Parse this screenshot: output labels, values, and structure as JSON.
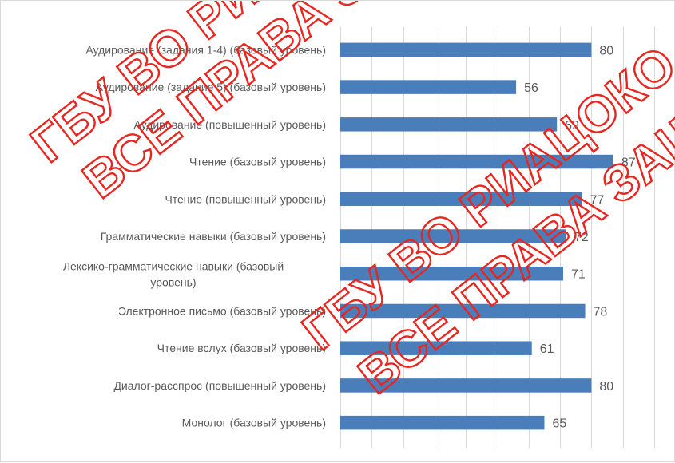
{
  "chart_data": {
    "type": "bar",
    "orientation": "horizontal",
    "categories": [
      "Аудирование (задания 1-4) (базовый уровень)",
      "Аудирование (задание 5) (базовый уровень)",
      "Аудирование (повышенный уровень)",
      "Чтение (базовый уровень)",
      "Чтение (повышенный уровень)",
      "Грамматические навыки (базовый уровень)",
      "Лексико-грамматические навыки (базовый уровень)",
      "Электронное письмо (базовый уровень)",
      "Чтение вслух (базовый уровень)",
      "Диалог-расспрос (повышенный уровень)",
      "Монолог (базовый уровень)"
    ],
    "category_lines": [
      [
        "Аудирование (задания 1-4) (базовый уровень)"
      ],
      [
        "Аудирование (задание 5) (базовый уровень)"
      ],
      [
        "Аудирование (повышенный уровень)"
      ],
      [
        "Чтение (базовый уровень)"
      ],
      [
        "Чтение (повышенный уровень)"
      ],
      [
        "Грамматические навыки (базовый уровень)"
      ],
      [
        "Лексико-грамматические навыки (базовый",
        "уровень)"
      ],
      [
        "Электронное письмо (базовый уровень)"
      ],
      [
        "Чтение вслух (базовый уровень)"
      ],
      [
        "Диалог-расспрос (повышенный уровень)"
      ],
      [
        "Монолог (базовый уровень)"
      ]
    ],
    "values": [
      80,
      56,
      69,
      87,
      77,
      72,
      71,
      78,
      61,
      80,
      65
    ],
    "xlim": [
      0,
      100
    ],
    "xticks_step": 10,
    "grid": true,
    "bar_color": "#4a7ebb",
    "title": "",
    "xlabel": "",
    "ylabel": ""
  },
  "watermark": {
    "lines": [
      "ГБУ ВО РИАЦОКО",
      "ВСЕ ПРАВА ЗАЩИЩЕНЫ"
    ],
    "color": "#e8251f"
  }
}
